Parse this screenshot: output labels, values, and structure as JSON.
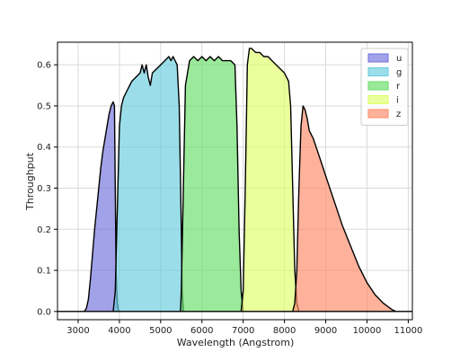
{
  "chart_data": {
    "type": "area",
    "title": "",
    "xlabel": "Wavelength (Angstrom)",
    "ylabel": "Throughput",
    "xlim": [
      2500,
      11100
    ],
    "ylim": [
      -0.02,
      0.655
    ],
    "xticks": [
      3000,
      4000,
      5000,
      6000,
      7000,
      8000,
      9000,
      10000,
      11000
    ],
    "yticks": [
      0.0,
      0.1,
      0.2,
      0.3,
      0.4,
      0.5,
      0.6
    ],
    "grid": true,
    "legend_position": "top-right",
    "series": [
      {
        "name": "u",
        "color": "#7070dd",
        "points": [
          [
            3150,
            0.0
          ],
          [
            3200,
            0.008
          ],
          [
            3250,
            0.03
          ],
          [
            3300,
            0.08
          ],
          [
            3350,
            0.14
          ],
          [
            3400,
            0.2
          ],
          [
            3450,
            0.25
          ],
          [
            3500,
            0.3
          ],
          [
            3550,
            0.35
          ],
          [
            3600,
            0.39
          ],
          [
            3650,
            0.42
          ],
          [
            3700,
            0.45
          ],
          [
            3750,
            0.48
          ],
          [
            3800,
            0.5
          ],
          [
            3850,
            0.51
          ],
          [
            3880,
            0.5
          ],
          [
            3900,
            0.3
          ],
          [
            3920,
            0.1
          ],
          [
            3950,
            0.02
          ],
          [
            3980,
            0.0
          ]
        ]
      },
      {
        "name": "g",
        "color": "#66ccdd",
        "points": [
          [
            3850,
            0.0
          ],
          [
            3900,
            0.05
          ],
          [
            3950,
            0.25
          ],
          [
            4000,
            0.45
          ],
          [
            4050,
            0.5
          ],
          [
            4100,
            0.52
          ],
          [
            4200,
            0.54
          ],
          [
            4300,
            0.56
          ],
          [
            4400,
            0.57
          ],
          [
            4500,
            0.58
          ],
          [
            4550,
            0.6
          ],
          [
            4600,
            0.58
          ],
          [
            4650,
            0.6
          ],
          [
            4700,
            0.57
          ],
          [
            4750,
            0.55
          ],
          [
            4800,
            0.58
          ],
          [
            4900,
            0.59
          ],
          [
            5000,
            0.6
          ],
          [
            5100,
            0.61
          ],
          [
            5200,
            0.62
          ],
          [
            5250,
            0.61
          ],
          [
            5300,
            0.62
          ],
          [
            5350,
            0.61
          ],
          [
            5400,
            0.6
          ],
          [
            5450,
            0.5
          ],
          [
            5500,
            0.2
          ],
          [
            5520,
            0.05
          ],
          [
            5550,
            0.0
          ]
        ]
      },
      {
        "name": "r",
        "color": "#66dd66",
        "points": [
          [
            5480,
            0.0
          ],
          [
            5500,
            0.05
          ],
          [
            5550,
            0.3
          ],
          [
            5600,
            0.55
          ],
          [
            5700,
            0.61
          ],
          [
            5800,
            0.62
          ],
          [
            5900,
            0.61
          ],
          [
            6000,
            0.62
          ],
          [
            6100,
            0.61
          ],
          [
            6200,
            0.62
          ],
          [
            6300,
            0.61
          ],
          [
            6400,
            0.62
          ],
          [
            6500,
            0.61
          ],
          [
            6600,
            0.61
          ],
          [
            6700,
            0.61
          ],
          [
            6800,
            0.6
          ],
          [
            6850,
            0.45
          ],
          [
            6900,
            0.2
          ],
          [
            6950,
            0.05
          ],
          [
            7000,
            0.0
          ]
        ]
      },
      {
        "name": "i",
        "color": "#ddff66",
        "points": [
          [
            6950,
            0.0
          ],
          [
            7000,
            0.05
          ],
          [
            7050,
            0.3
          ],
          [
            7100,
            0.6
          ],
          [
            7150,
            0.64
          ],
          [
            7200,
            0.64
          ],
          [
            7300,
            0.63
          ],
          [
            7400,
            0.63
          ],
          [
            7500,
            0.62
          ],
          [
            7600,
            0.62
          ],
          [
            7700,
            0.61
          ],
          [
            7800,
            0.6
          ],
          [
            7900,
            0.59
          ],
          [
            8000,
            0.58
          ],
          [
            8100,
            0.56
          ],
          [
            8150,
            0.5
          ],
          [
            8200,
            0.3
          ],
          [
            8250,
            0.1
          ],
          [
            8300,
            0.02
          ],
          [
            8350,
            0.0
          ]
        ]
      },
      {
        "name": "z",
        "color": "#ff8866",
        "points": [
          [
            8200,
            0.0
          ],
          [
            8250,
            0.02
          ],
          [
            8300,
            0.1
          ],
          [
            8350,
            0.3
          ],
          [
            8400,
            0.45
          ],
          [
            8450,
            0.5
          ],
          [
            8500,
            0.49
          ],
          [
            8550,
            0.47
          ],
          [
            8600,
            0.44
          ],
          [
            8700,
            0.42
          ],
          [
            8800,
            0.39
          ],
          [
            8900,
            0.36
          ],
          [
            9000,
            0.33
          ],
          [
            9200,
            0.27
          ],
          [
            9400,
            0.21
          ],
          [
            9600,
            0.16
          ],
          [
            9800,
            0.11
          ],
          [
            10000,
            0.07
          ],
          [
            10200,
            0.04
          ],
          [
            10400,
            0.02
          ],
          [
            10600,
            0.005
          ],
          [
            10700,
            0.0
          ]
        ]
      }
    ]
  }
}
